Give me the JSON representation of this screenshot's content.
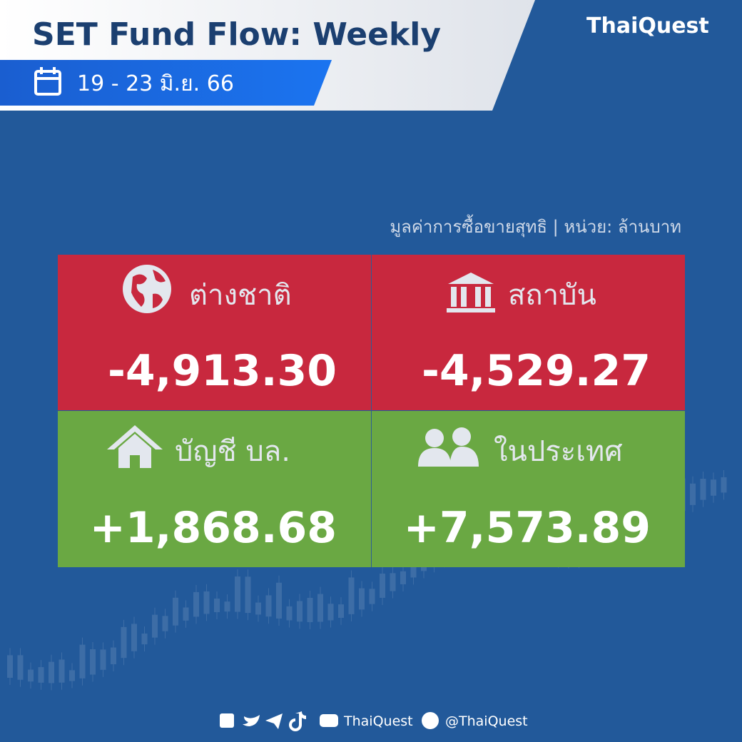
{
  "header": {
    "title": "SET Fund Flow: Weekly",
    "date": "19 - 23 มิ.ย. 66",
    "brand": "ThaiQuest"
  },
  "note": "มูลค่าการซื้อขายสุทธิ | หน่วย: ล้านบาท",
  "cells": [
    {
      "label": "ต่างชาติ",
      "value": "-4,913.30"
    },
    {
      "label": "สถาบัน",
      "value": "-4,529.27"
    },
    {
      "label": "บัญชี บล.",
      "value": "+1,868.68"
    },
    {
      "label": "ในประเทศ",
      "value": "+7,573.89"
    }
  ],
  "footer": {
    "page": "ThaiQuest",
    "line": "@ThaiQuest"
  }
}
